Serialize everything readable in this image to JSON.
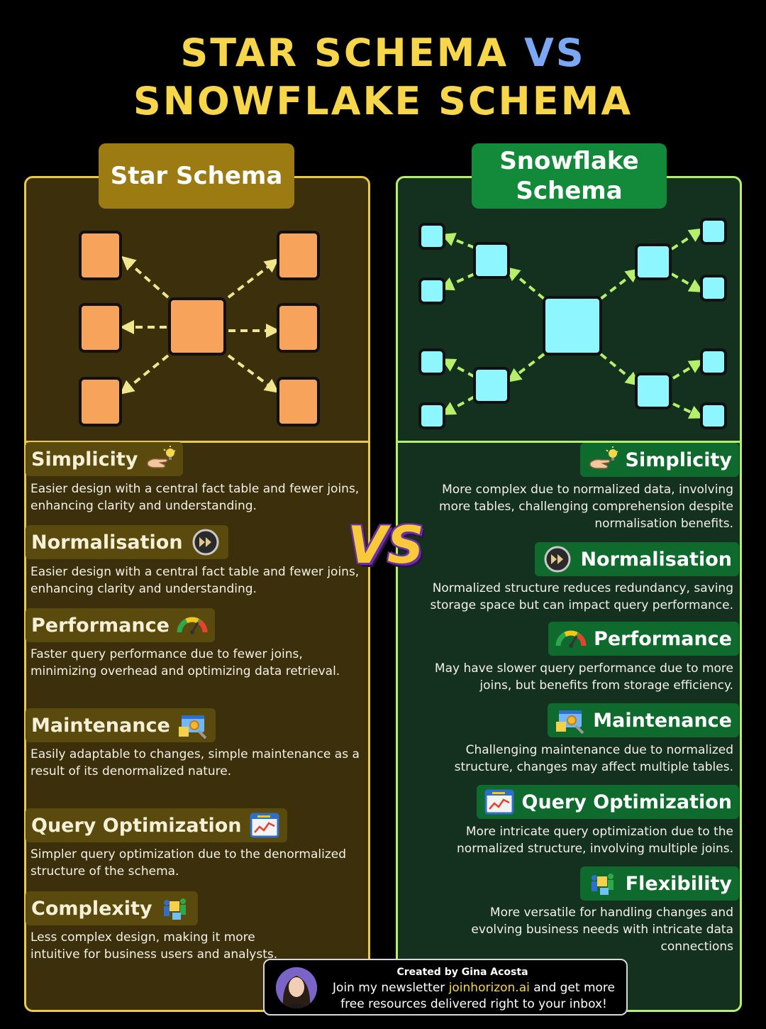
{
  "title": {
    "line1": "STAR SCHEMA",
    "vs": "VS",
    "line2": "SNOWFLAKE SCHEMA"
  },
  "colors": {
    "title": "#f7d64a",
    "title_vs": "#7aa8f5",
    "star_border": "#e8c94a",
    "star_bg": "#3b2f0c",
    "star_node": "#f7a35c",
    "snow_border": "#b6ef6a",
    "snow_bg": "#14301f",
    "snow_node": "#8ef6ff",
    "arrow": "#f0e68c",
    "snow_arrow": "#b6ef6a"
  },
  "star": {
    "header": "Star Schema",
    "features": [
      {
        "title": "Simplicity",
        "icon": "pointing-hand-lightbulb-icon",
        "text": "Easier design with a central fact table and fewer joins, enhancing clarity and understanding."
      },
      {
        "title": "Normalisation",
        "icon": "fast-forward-icon",
        "text": "Easier design with a central fact table and fewer joins, enhancing clarity and understanding."
      },
      {
        "title": "Performance",
        "icon": "speedometer-gauge-icon",
        "text": "Faster query performance due to fewer joins, minimizing overhead and optimizing data retrieval."
      },
      {
        "title": "Maintenance",
        "icon": "maintenance-tools-icon",
        "text": "Easily adaptable to changes, simple maintenance as a result of its denormalized nature."
      },
      {
        "title": "Query Optimization",
        "icon": "line-chart-window-icon",
        "text": "Simpler query optimization due to the denormalized structure of the schema."
      },
      {
        "title": "Complexity",
        "icon": "people-puzzle-icon",
        "text": "Less complex design, making it more intuitive for business users and analysts."
      }
    ]
  },
  "snow": {
    "header": "Snowflake Schema",
    "features": [
      {
        "title": "Simplicity",
        "icon": "pointing-hand-lightbulb-icon",
        "text": "More complex due to normalized data, involving more tables, challenging comprehension despite normalisation benefits."
      },
      {
        "title": "Normalisation",
        "icon": "fast-forward-icon",
        "text": "Normalized structure reduces redundancy, saving storage space but can impact query performance."
      },
      {
        "title": "Performance",
        "icon": "speedometer-gauge-icon",
        "text": "May have slower query performance due to more joins, but benefits from storage efficiency."
      },
      {
        "title": "Maintenance",
        "icon": "maintenance-tools-icon",
        "text": "Challenging maintenance due to normalized structure, changes may affect multiple tables."
      },
      {
        "title": "Query Optimization",
        "icon": "line-chart-window-icon",
        "text": "More intricate query optimization due to the normalized structure, involving multiple joins."
      },
      {
        "title": "Flexibility",
        "icon": "people-puzzle-icon",
        "text": "More versatile for handling changes and evolving business needs with intricate data connections"
      }
    ]
  },
  "vs_badge": "VS",
  "footer": {
    "credit": "Created by Gina Acosta",
    "line2_pre": "Join my newsletter ",
    "line2_link": "joinhorizon.ai",
    "line2_post": " and get more",
    "line3": "free resources delivered right to your inbox!"
  }
}
